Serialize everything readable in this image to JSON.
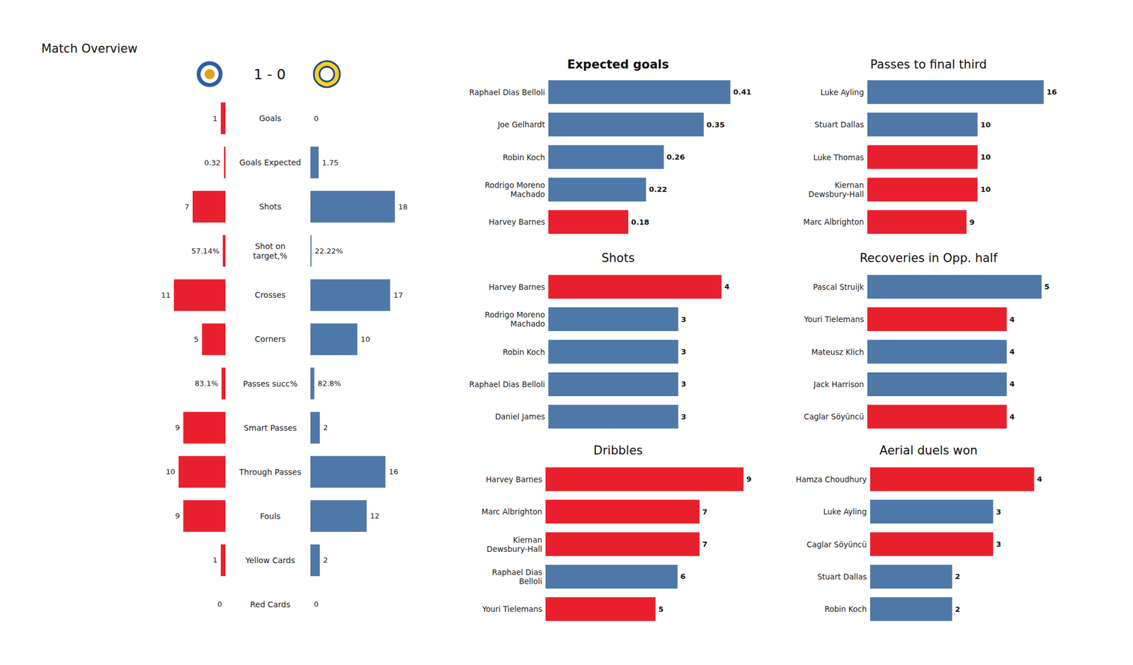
{
  "title": "Match Overview",
  "score": "1 - 0",
  "chart_data": [
    {
      "type": "bar",
      "orientation": "horizontal",
      "categories": [
        "Goals",
        "Goals Expected",
        "Shots",
        "Shot on\ntarget,%",
        "Crosses",
        "Corners",
        "Passes succ%",
        "Smart Passes",
        "Through Passes",
        "Fouls",
        "Yellow Cards",
        "Red Cards"
      ],
      "series": [
        {
          "color": "#e8202e",
          "values": [
            1,
            0.32,
            7,
            0.5714,
            11,
            5,
            0.831,
            9,
            10,
            9,
            1,
            0
          ],
          "value_labels": [
            "1",
            "0.32",
            "7",
            "57.14%",
            "11",
            "5",
            "83.1%",
            "9",
            "10",
            "9",
            "1",
            "0"
          ]
        },
        {
          "color": "#4e78a7",
          "values": [
            0,
            1.75,
            18,
            0.2222,
            17,
            10,
            0.828,
            2,
            16,
            12,
            2,
            0
          ],
          "value_labels": [
            "0",
            "1.75",
            "18",
            "22.22%",
            "17",
            "10",
            "82.8%",
            "2",
            "16",
            "12",
            "2",
            "0"
          ]
        }
      ],
      "xlim": [
        0,
        18
      ],
      "tick_labels": "y",
      "data_labels": true,
      "grid": false
    },
    {
      "type": "bar",
      "orientation": "horizontal",
      "title": "Expected goals",
      "categories": [
        "Raphael Dias Belloli",
        "Joe Gelhardt",
        "Robin Koch",
        "Rodrigo Moreno\nMachado",
        "Harvey Barnes"
      ],
      "values": [
        0.41,
        0.35,
        0.26,
        0.22,
        0.18
      ],
      "colors": [
        "#4e78a7",
        "#4e78a7",
        "#4e78a7",
        "#4e78a7",
        "#e8202e"
      ],
      "xlim": [
        0,
        0.43
      ],
      "tick_labels": "y",
      "data_labels": true,
      "grid": false
    },
    {
      "type": "bar",
      "orientation": "horizontal",
      "title": "Shots",
      "categories": [
        "Harvey Barnes",
        "Rodrigo Moreno\nMachado",
        "Robin Koch",
        "Raphael Dias Belloli",
        "Daniel James"
      ],
      "values": [
        4,
        3,
        3,
        3,
        3
      ],
      "colors": [
        "#e8202e",
        "#4e78a7",
        "#4e78a7",
        "#4e78a7",
        "#4e78a7"
      ],
      "xlim": [
        0,
        4.2
      ],
      "tick_labels": "y",
      "data_labels": true,
      "grid": false
    },
    {
      "type": "bar",
      "orientation": "horizontal",
      "title": "Dribbles",
      "categories": [
        "Harvey Barnes",
        "Marc Albrighton",
        "Kiernan\nDewsbury-Hall",
        "Raphael Dias\nBelloli",
        "Youri Tielemans"
      ],
      "values": [
        9,
        7,
        7,
        6,
        5
      ],
      "colors": [
        "#e8202e",
        "#e8202e",
        "#e8202e",
        "#4e78a7",
        "#e8202e"
      ],
      "xlim": [
        0,
        9.45
      ],
      "tick_labels": "y",
      "data_labels": true,
      "grid": false
    },
    {
      "type": "bar",
      "orientation": "horizontal",
      "title": "Passes to final third",
      "categories": [
        "Luke Ayling",
        "Stuart Dallas",
        "Luke Thomas",
        "Kiernan\nDewsbury-Hall",
        "Marc Albrighton"
      ],
      "values": [
        16,
        10,
        10,
        10,
        9
      ],
      "colors": [
        "#4e78a7",
        "#4e78a7",
        "#e8202e",
        "#e8202e",
        "#e8202e"
      ],
      "xlim": [
        0,
        16.8
      ],
      "tick_labels": "y",
      "data_labels": true,
      "grid": false
    },
    {
      "type": "bar",
      "orientation": "horizontal",
      "title": "Recoveries in Opp. half",
      "categories": [
        "Pascal Struijk",
        "Youri Tielemans",
        "Mateusz Klich",
        "Jack Harrison",
        "Caglar Söyüncü"
      ],
      "values": [
        5,
        4,
        4,
        4,
        4
      ],
      "colors": [
        "#4e78a7",
        "#e8202e",
        "#4e78a7",
        "#4e78a7",
        "#e8202e"
      ],
      "xlim": [
        0,
        5.25
      ],
      "tick_labels": "y",
      "data_labels": true,
      "grid": false
    },
    {
      "type": "bar",
      "orientation": "horizontal",
      "title": "Aerial duels won",
      "categories": [
        "Hamza Choudhury",
        "Luke Ayling",
        "Caglar Söyüncü",
        "Stuart Dallas",
        "Robin Koch"
      ],
      "values": [
        4,
        3,
        3,
        2,
        2
      ],
      "colors": [
        "#e8202e",
        "#4e78a7",
        "#e8202e",
        "#4e78a7",
        "#4e78a7"
      ],
      "xlim": [
        0,
        4.2
      ],
      "tick_labels": "y",
      "data_labels": true,
      "grid": false
    }
  ]
}
